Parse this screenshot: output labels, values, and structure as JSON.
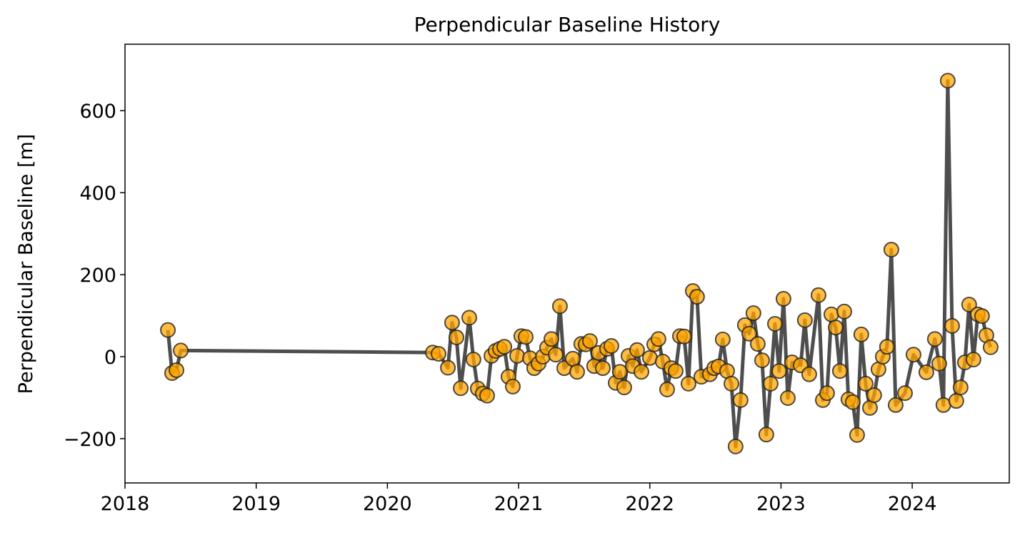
{
  "chart_data": {
    "type": "line",
    "title": "Perpendicular Baseline History",
    "ylabel": "Perpendicular Baseline [m]",
    "x": [
      2018.327,
      2018.359,
      2018.392,
      2018.425,
      2020.346,
      2020.39,
      2020.461,
      2020.493,
      2020.526,
      2020.559,
      2020.624,
      2020.656,
      2020.689,
      2020.727,
      2020.76,
      2020.793,
      2020.825,
      2020.858,
      2020.891,
      2020.923,
      2020.956,
      2020.989,
      2021.021,
      2021.054,
      2021.087,
      2021.119,
      2021.152,
      2021.185,
      2021.217,
      2021.25,
      2021.283,
      2021.315,
      2021.348,
      2021.413,
      2021.446,
      2021.478,
      2021.511,
      2021.544,
      2021.576,
      2021.609,
      2021.642,
      2021.674,
      2021.707,
      2021.74,
      2021.772,
      2021.805,
      2021.838,
      2021.87,
      2021.903,
      2021.936,
      2022.001,
      2022.034,
      2022.066,
      2022.099,
      2022.132,
      2022.164,
      2022.197,
      2022.23,
      2022.262,
      2022.295,
      2022.328,
      2022.36,
      2022.393,
      2022.458,
      2022.491,
      2022.524,
      2022.556,
      2022.589,
      2022.622,
      2022.654,
      2022.692,
      2022.725,
      2022.758,
      2022.79,
      2022.823,
      2022.856,
      2022.888,
      2022.921,
      2022.954,
      2022.986,
      2023.019,
      2023.052,
      2023.084,
      2023.15,
      2023.182,
      2023.215,
      2023.286,
      2023.319,
      2023.351,
      2023.384,
      2023.417,
      2023.449,
      2023.482,
      2023.514,
      2023.547,
      2023.58,
      2023.612,
      2023.645,
      2023.678,
      2023.71,
      2023.743,
      2023.776,
      2023.808,
      2023.841,
      2023.874,
      2023.945,
      2024.01,
      2024.108,
      2024.173,
      2024.206,
      2024.238,
      2024.271,
      2024.304,
      2024.336,
      2024.369,
      2024.402,
      2024.434,
      2024.467,
      2024.5,
      2024.532,
      2024.565,
      2024.598
    ],
    "series": [
      {
        "color": "#444444",
        "marker_color": "#ffa500",
        "values": [
          65,
          -40,
          -33,
          15,
          10,
          7,
          -27,
          83,
          47,
          -77,
          95,
          -7,
          -78,
          -90,
          -95,
          2,
          14,
          19,
          24,
          -49,
          -73,
          2,
          50,
          48,
          -4,
          -28,
          -17,
          0,
          22,
          43,
          5,
          123,
          -28,
          -5,
          -37,
          31,
          30,
          38,
          -23,
          9,
          -28,
          19,
          26,
          -64,
          -37,
          -75,
          2,
          -23,
          16,
          -37,
          -3,
          30,
          43,
          -12,
          -80,
          -28,
          -35,
          50,
          49,
          -66,
          160,
          146,
          -49,
          -43,
          -28,
          -24,
          42,
          -35,
          -66,
          -219,
          -106,
          77,
          56,
          106,
          31,
          -9,
          -190,
          -66,
          80,
          -35,
          141,
          -101,
          -14,
          -21,
          89,
          -43,
          150,
          -106,
          -89,
          103,
          71,
          -35,
          110,
          -104,
          -111,
          -191,
          54,
          -66,
          -125,
          -94,
          -31,
          0,
          24,
          261,
          -118,
          -89,
          5,
          -38,
          43,
          -17,
          -118,
          673,
          75,
          -108,
          -75,
          -14,
          127,
          -7,
          103,
          99,
          52,
          23
        ]
      }
    ],
    "xlim": [
      2018,
      2024.74
    ],
    "xticks": [
      2018,
      2019,
      2020,
      2021,
      2022,
      2023,
      2024
    ],
    "ylim": [
      -308,
      762
    ],
    "yticks": [
      {
        "value": -200,
        "label": "−200"
      },
      0,
      200,
      400,
      600
    ]
  }
}
